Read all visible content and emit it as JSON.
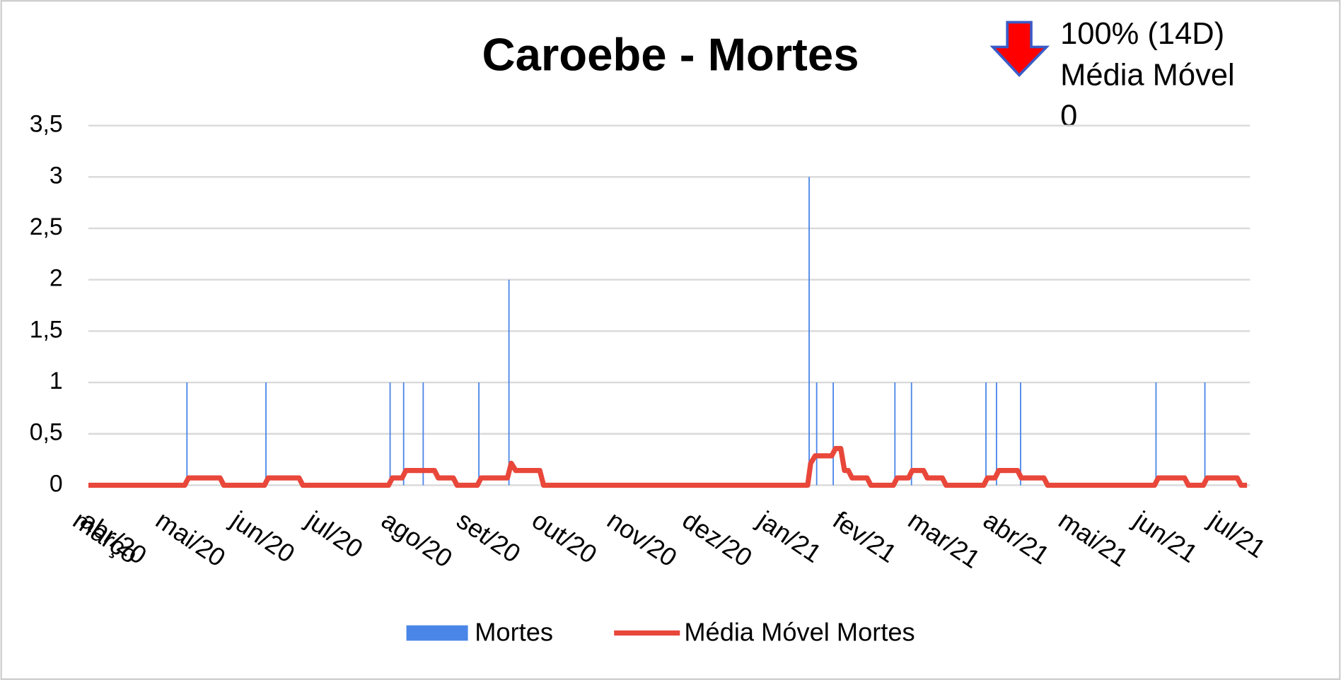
{
  "chart_data": {
    "type": "bar",
    "title": "Caroebe - Mortes",
    "annotation": {
      "lines": [
        "100% (14D)",
        "Média Móvel",
        "0"
      ],
      "color": "#ff0000"
    },
    "xlim": [
      0,
      15.44
    ],
    "xticks": [
      {
        "value": 0,
        "label": "março"
      },
      {
        "value": 0.1,
        "label": "abr/20"
      },
      {
        "value": 1.1,
        "label": "mai/20"
      },
      {
        "value": 2.1,
        "label": "jun/20"
      },
      {
        "value": 3.1,
        "label": "jul/20"
      },
      {
        "value": 4.1,
        "label": "ago/20"
      },
      {
        "value": 5.1,
        "label": "set/20"
      },
      {
        "value": 6.1,
        "label": "out/20"
      },
      {
        "value": 7.1,
        "label": "nov/20"
      },
      {
        "value": 8.1,
        "label": "dez/20"
      },
      {
        "value": 9.1,
        "label": "jan/21"
      },
      {
        "value": 10.1,
        "label": "fev/21"
      },
      {
        "value": 11.1,
        "label": "mar/21"
      },
      {
        "value": 12.1,
        "label": "abr/21"
      },
      {
        "value": 13.1,
        "label": "mai/21"
      },
      {
        "value": 14.1,
        "label": "jun/21"
      },
      {
        "value": 15.1,
        "label": "jul/21"
      }
    ],
    "ylim": [
      0,
      3.5
    ],
    "yticks": [
      0,
      {
        "value": 0.5,
        "label": "0,5"
      },
      1,
      {
        "value": 1.5,
        "label": "1,5"
      },
      2,
      {
        "value": 2.5,
        "label": "2,5"
      },
      3,
      {
        "value": 3.5,
        "label": "3,5"
      }
    ],
    "grid": true,
    "legend": "bottom",
    "series": [
      {
        "name": "Mortes",
        "type": "bar",
        "color": "#4a86e8",
        "x": [
          1.31,
          2.36,
          4.01,
          4.19,
          4.45,
          5.19,
          5.59,
          9.58,
          9.68,
          9.9,
          10.72,
          10.94,
          11.93,
          12.07,
          12.39,
          14.19,
          14.84
        ],
        "values": [
          1,
          1,
          1,
          1,
          1,
          1,
          2,
          3,
          1,
          1,
          1,
          1,
          1,
          1,
          1,
          1,
          1
        ]
      },
      {
        "name": "Média Móvel Mortes",
        "type": "line",
        "color": "#e8473a",
        "x": [
          0,
          1.28,
          1.33,
          1.75,
          1.8,
          2.34,
          2.39,
          2.8,
          2.85,
          3.99,
          4.04,
          4.17,
          4.22,
          4.6,
          4.65,
          4.85,
          4.9,
          5.17,
          5.22,
          5.57,
          5.62,
          5.68,
          6.0,
          6.05,
          9.56,
          9.6,
          9.66,
          9.88,
          9.93,
          10.0,
          10.05,
          10.1,
          10.15,
          10.35,
          10.4,
          10.7,
          10.75,
          10.9,
          10.95,
          11.1,
          11.15,
          11.35,
          11.4,
          11.9,
          11.95,
          12.05,
          12.1,
          12.35,
          12.4,
          12.7,
          12.75,
          14.17,
          14.22,
          14.57,
          14.62,
          14.82,
          14.87,
          15.27,
          15.32,
          15.4
        ],
        "values": [
          0,
          0,
          0.071,
          0.071,
          0,
          0,
          0.071,
          0.071,
          0,
          0,
          0.071,
          0.071,
          0.143,
          0.143,
          0.071,
          0.071,
          0,
          0,
          0.071,
          0.071,
          0.214,
          0.143,
          0.143,
          0,
          0,
          0.214,
          0.286,
          0.286,
          0.357,
          0.357,
          0.143,
          0.143,
          0.071,
          0.071,
          0,
          0,
          0.071,
          0.071,
          0.143,
          0.143,
          0.071,
          0.071,
          0,
          0,
          0.071,
          0.071,
          0.143,
          0.143,
          0.071,
          0.071,
          0,
          0,
          0.071,
          0.071,
          0,
          0,
          0.071,
          0.071,
          0,
          0
        ]
      }
    ]
  }
}
